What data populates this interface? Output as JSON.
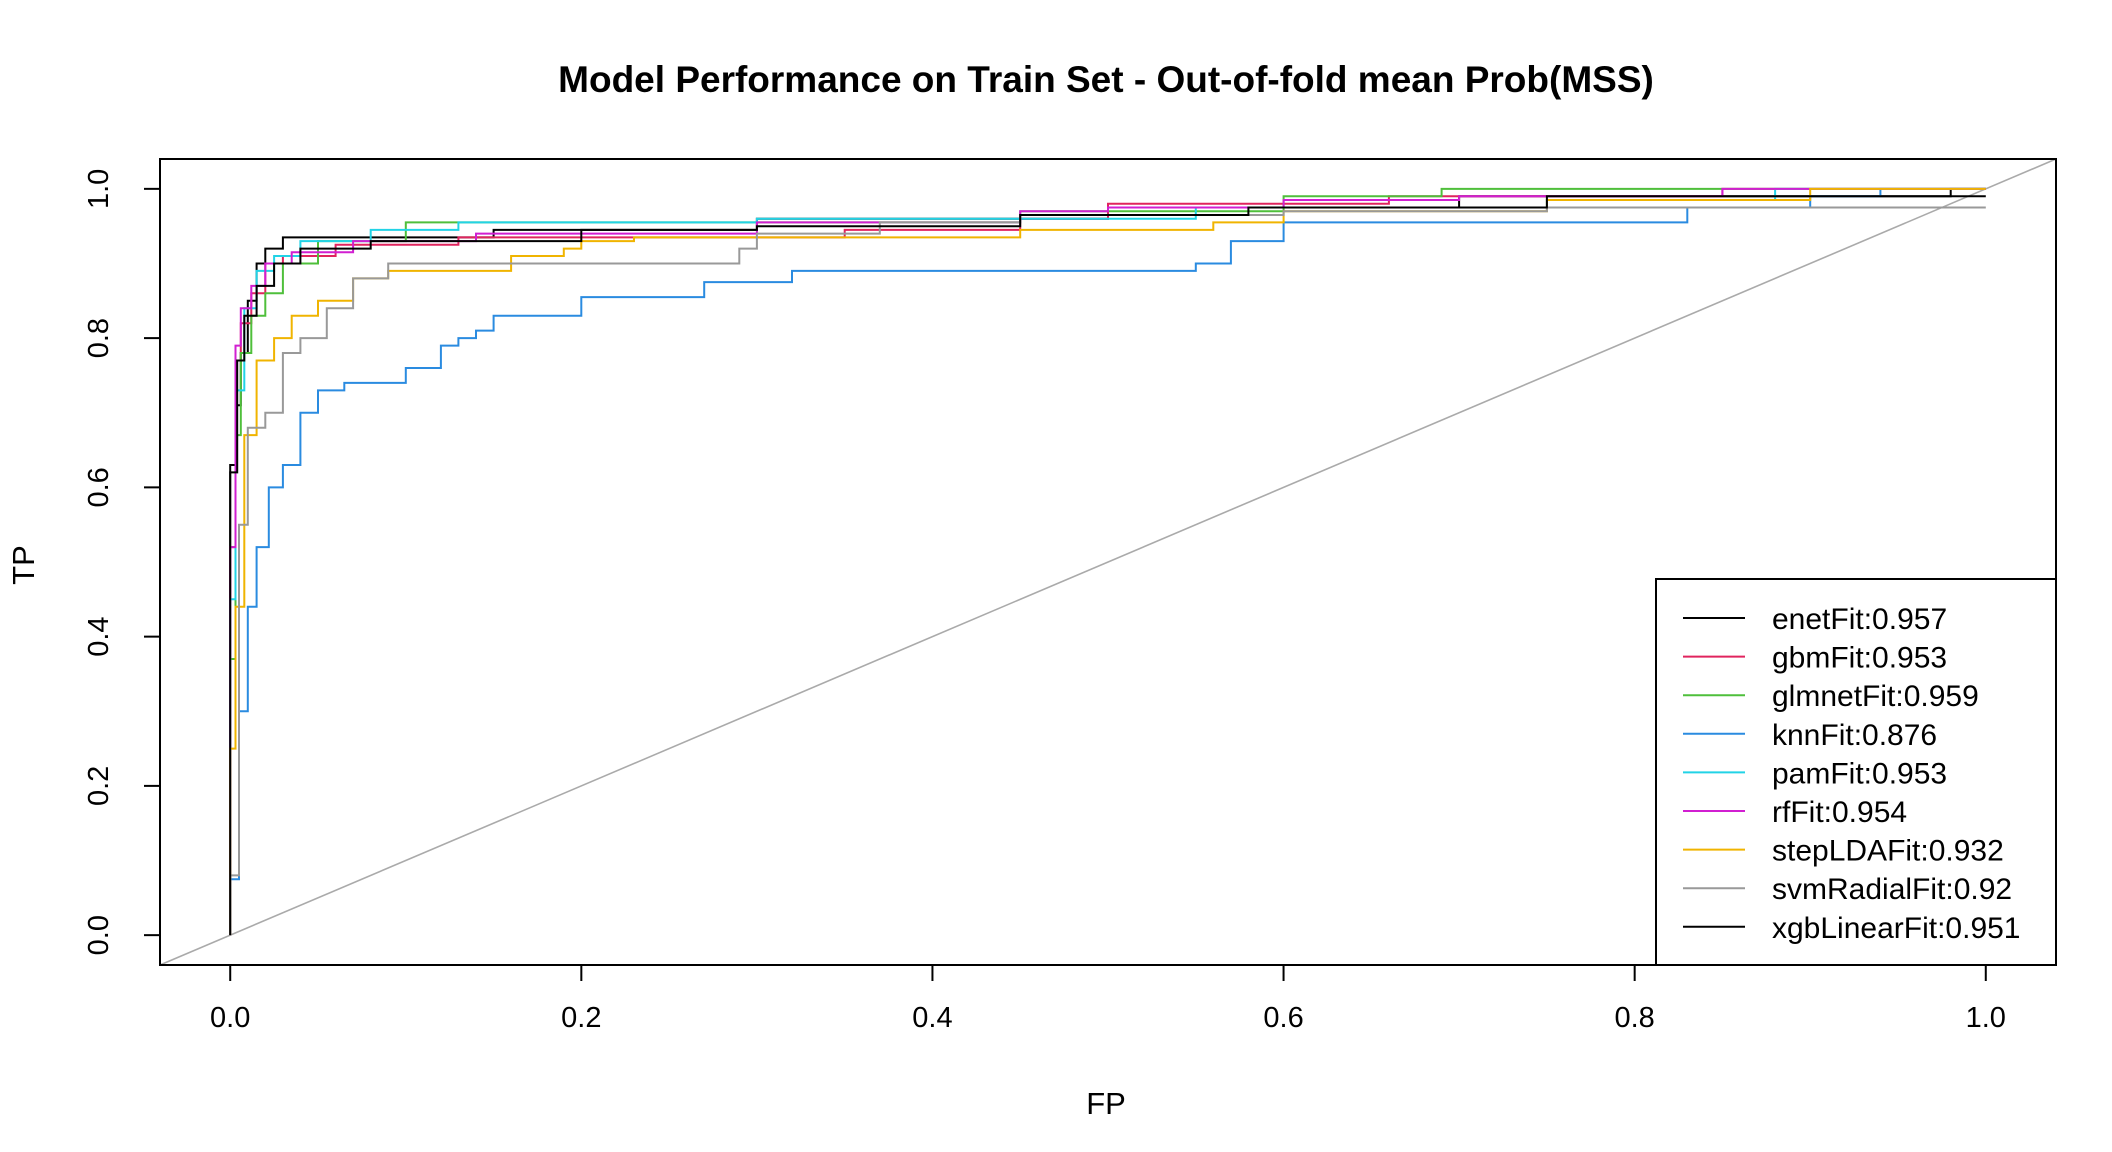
{
  "chart_data": {
    "type": "line",
    "title": "Model Performance on Train Set - Out-of-fold mean Prob(MSS)",
    "xlabel": "FP",
    "ylabel": "TP",
    "xlim": [
      -0.04,
      1.04
    ],
    "ylim": [
      -0.04,
      1.04
    ],
    "xticks": [
      0.0,
      0.2,
      0.4,
      0.6,
      0.8,
      1.0
    ],
    "xtick_labels": [
      "0.0",
      "0.2",
      "0.4",
      "0.6",
      "0.8",
      "1.0"
    ],
    "yticks": [
      0.0,
      0.2,
      0.4,
      0.6,
      0.8,
      1.0
    ],
    "ytick_labels": [
      "0.0",
      "0.2",
      "0.4",
      "0.6",
      "0.8",
      "1.0"
    ],
    "grid": false,
    "legend_position": "bottom-right",
    "reference_line": {
      "x": [
        -0.04,
        1.04
      ],
      "y": [
        -0.04,
        1.04
      ],
      "color": "#aaaaaa"
    },
    "series": [
      {
        "name": "enetFit:0.957",
        "color": "#000000",
        "step": true,
        "x": [
          0,
          0.003,
          0.006,
          0.01,
          0.015,
          0.02,
          0.03,
          0.055,
          0.15,
          0.3,
          0.5,
          0.7,
          0.98,
          1.0
        ],
        "y": [
          0,
          0.63,
          0.71,
          0.78,
          0.85,
          0.9,
          0.92,
          0.935,
          0.935,
          0.945,
          0.96,
          0.975,
          0.99,
          1.0
        ]
      },
      {
        "name": "gbmFit:0.953",
        "color": "#e0245e",
        "step": true,
        "x": [
          0,
          0.003,
          0.006,
          0.012,
          0.02,
          0.03,
          0.06,
          0.13,
          0.35,
          0.45,
          0.5,
          0.66,
          0.85,
          1.0
        ],
        "y": [
          0,
          0.52,
          0.77,
          0.82,
          0.86,
          0.9,
          0.91,
          0.925,
          0.935,
          0.945,
          0.96,
          0.98,
          0.99,
          1.0
        ]
      },
      {
        "name": "glmnetFit:0.959",
        "color": "#4fbf3b",
        "step": true,
        "x": [
          0,
          0.003,
          0.006,
          0.012,
          0.02,
          0.03,
          0.05,
          0.1,
          0.2,
          0.45,
          0.6,
          0.69,
          0.7,
          0.93,
          1.0
        ],
        "y": [
          0,
          0.37,
          0.67,
          0.78,
          0.83,
          0.86,
          0.9,
          0.93,
          0.955,
          0.955,
          0.97,
          0.99,
          1.0,
          1.0,
          1.0
        ]
      },
      {
        "name": "knnFit:0.876",
        "color": "#2a8be0",
        "step": true,
        "x": [
          0,
          0.005,
          0.01,
          0.015,
          0.022,
          0.03,
          0.04,
          0.05,
          0.055,
          0.065,
          0.1,
          0.12,
          0.13,
          0.14,
          0.15,
          0.2,
          0.27,
          0.32,
          0.37,
          0.55,
          0.57,
          0.6,
          0.66,
          0.83,
          0.9,
          0.94,
          1.0
        ],
        "y": [
          0,
          0.075,
          0.3,
          0.44,
          0.52,
          0.6,
          0.63,
          0.7,
          0.73,
          0.73,
          0.74,
          0.76,
          0.79,
          0.8,
          0.81,
          0.83,
          0.855,
          0.875,
          0.89,
          0.89,
          0.9,
          0.93,
          0.955,
          0.955,
          0.975,
          0.99,
          1.0
        ]
      },
      {
        "name": "pamFit:0.953",
        "color": "#22d3e6",
        "step": true,
        "x": [
          0,
          0.003,
          0.008,
          0.015,
          0.025,
          0.04,
          0.08,
          0.13,
          0.3,
          0.55,
          0.75,
          0.88,
          1.0
        ],
        "y": [
          0,
          0.45,
          0.73,
          0.84,
          0.89,
          0.91,
          0.93,
          0.945,
          0.955,
          0.96,
          0.975,
          0.985,
          1.0
        ]
      },
      {
        "name": "rfFit:0.954",
        "color": "#d11fd1",
        "step": true,
        "x": [
          0,
          0.003,
          0.006,
          0.012,
          0.02,
          0.035,
          0.07,
          0.14,
          0.3,
          0.45,
          0.5,
          0.6,
          0.7,
          0.85,
          1.0
        ],
        "y": [
          0,
          0.52,
          0.79,
          0.84,
          0.87,
          0.9,
          0.915,
          0.93,
          0.94,
          0.955,
          0.97,
          0.975,
          0.985,
          0.99,
          1.0
        ]
      },
      {
        "name": "stepLDAFit:0.932",
        "color": "#f0b400",
        "step": true,
        "x": [
          0,
          0.003,
          0.008,
          0.015,
          0.025,
          0.035,
          0.05,
          0.07,
          0.09,
          0.16,
          0.19,
          0.2,
          0.23,
          0.3,
          0.45,
          0.56,
          0.6,
          0.75,
          0.9,
          1.0
        ],
        "y": [
          0,
          0.25,
          0.44,
          0.67,
          0.77,
          0.8,
          0.83,
          0.85,
          0.88,
          0.89,
          0.91,
          0.92,
          0.93,
          0.935,
          0.935,
          0.945,
          0.955,
          0.97,
          0.985,
          1.0
        ]
      },
      {
        "name": "svmRadialFit:0.92",
        "color": "#999999",
        "step": true,
        "x": [
          0,
          0.005,
          0.01,
          0.02,
          0.03,
          0.04,
          0.055,
          0.07,
          0.09,
          0.29,
          0.3,
          0.37,
          0.45,
          0.6,
          0.75,
          1.0
        ],
        "y": [
          0,
          0.08,
          0.55,
          0.68,
          0.7,
          0.78,
          0.8,
          0.84,
          0.88,
          0.9,
          0.92,
          0.94,
          0.955,
          0.965,
          0.97,
          0.975
        ]
      },
      {
        "name": "xgbLinearFit:0.951",
        "color": "#000000",
        "step": true,
        "x": [
          0,
          0.004,
          0.008,
          0.015,
          0.025,
          0.04,
          0.08,
          0.2,
          0.3,
          0.45,
          0.58,
          0.75,
          1.0
        ],
        "y": [
          0,
          0.62,
          0.77,
          0.83,
          0.87,
          0.9,
          0.92,
          0.93,
          0.945,
          0.95,
          0.965,
          0.975,
          0.99
        ]
      }
    ]
  }
}
